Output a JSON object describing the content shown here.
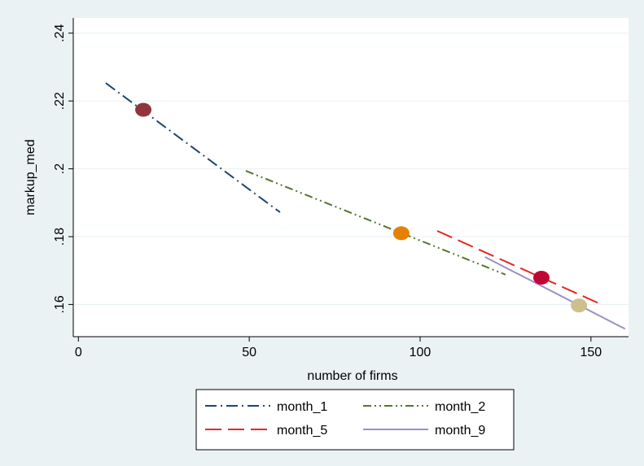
{
  "chart_data": {
    "type": "line",
    "top_text": "                         ",
    "xlabel": "number of firms",
    "ylabel": "markup_med",
    "xlim": [
      -1.5,
      161
    ],
    "ylim": [
      0.1505,
      0.2445
    ],
    "xticks": [
      0,
      50,
      100,
      150
    ],
    "xtick_labels": [
      "0",
      "50",
      "100",
      "150"
    ],
    "yticks": [
      0.16,
      0.18,
      0.2,
      0.22,
      0.24
    ],
    "ytick_labels": [
      ".16",
      ".18",
      ".2",
      ".22",
      ".24"
    ],
    "grid": true,
    "legend_position": "bottom",
    "series": [
      {
        "name": "month_1",
        "color": "#1a476f",
        "dash": "dash-dot",
        "x": [
          8,
          59
        ],
        "y": [
          0.2253,
          0.1872
        ]
      },
      {
        "name": "month_2",
        "color": "#55752f",
        "dash": "dash-dot-dot",
        "x": [
          49,
          125
        ],
        "y": [
          0.1994,
          0.1688
        ]
      },
      {
        "name": "month_5",
        "color": "#e8271f",
        "dash": "long-dash",
        "x": [
          105,
          152
        ],
        "y": [
          0.1817,
          0.1605
        ]
      },
      {
        "name": "month_9",
        "color": "#9c8fc5",
        "dash": "solid",
        "x": [
          119,
          160
        ],
        "y": [
          0.174,
          0.1528
        ]
      }
    ],
    "points": [
      {
        "x": 19,
        "y": 0.2174,
        "color": "#90353b"
      },
      {
        "x": 94.5,
        "y": 0.181,
        "color": "#e58003"
      },
      {
        "x": 135.5,
        "y": 0.1679,
        "color": "#c10534"
      },
      {
        "x": 146.5,
        "y": 0.1597,
        "color": "#cdc08c"
      }
    ]
  }
}
